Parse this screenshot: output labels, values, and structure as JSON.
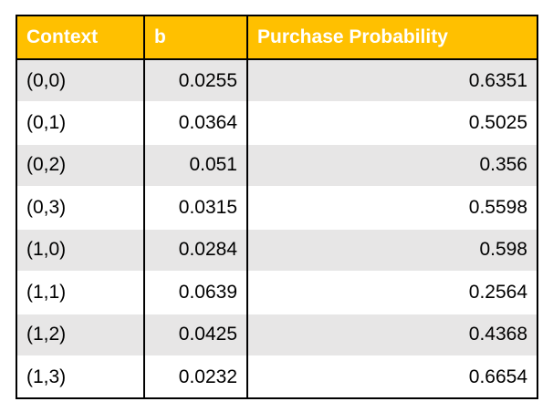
{
  "table": {
    "header": [
      "Context",
      "b",
      "Purchase Probability"
    ],
    "rows": [
      [
        "(0,0)",
        "0.0255",
        "0.6351"
      ],
      [
        "(0,1)",
        "0.0364",
        "0.5025"
      ],
      [
        "(0,2)",
        "0.051",
        "0.356"
      ],
      [
        "(0,3)",
        "0.0315",
        "0.5598"
      ],
      [
        "(1,0)",
        "0.0284",
        "0.598"
      ],
      [
        "(1,1)",
        "0.0639",
        "0.2564"
      ],
      [
        "(1,2)",
        "0.0425",
        "0.4368"
      ],
      [
        "(1,3)",
        "0.0232",
        "0.6654"
      ]
    ]
  }
}
